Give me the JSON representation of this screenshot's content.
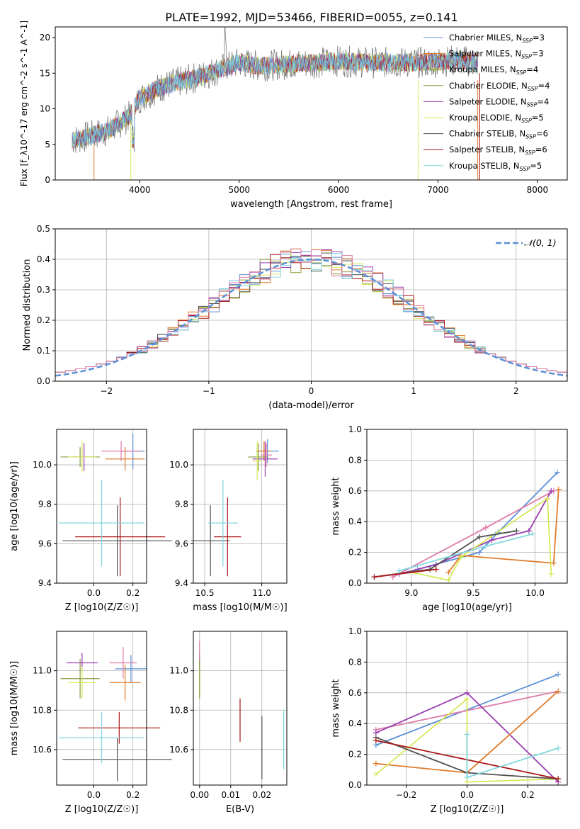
{
  "figure_title": "PLATE=1992, MJD=53466, FIBERID=0055, z=0.141",
  "colors": {
    "blue": "#5b8fd6",
    "orange": "#e07b2a",
    "olive": "#8a9a3a",
    "purple": "#9a3fb0",
    "yellow": "#d8e85a",
    "dark": "#505050",
    "red": "#aa1515",
    "cyan": "#7fd8de",
    "gray": "#7f7f7f",
    "pink": "#e07aa8",
    "normal": "#5b8fd6"
  },
  "chart_data": [
    {
      "id": "spectrum",
      "type": "line",
      "xlabel": "wavelength [Angstrom, rest frame]",
      "ylabel": "Flux [f_λ10^-17 erg cm^-2 s^-1 A^-1]",
      "xlim": [
        3150,
        8300
      ],
      "ylim": [
        0,
        21.5
      ],
      "xticks": [
        4000,
        5000,
        6000,
        7000,
        8000
      ],
      "yticks": [
        0,
        5,
        10,
        15,
        20
      ],
      "legend_position": "right",
      "series": [
        {
          "name": "Chabrier MILES",
          "nssp": "3",
          "color": "blue"
        },
        {
          "name": "Salpeter MILES",
          "nssp": "3",
          "color": "orange"
        },
        {
          "name": "Kroupa MILES",
          "nssp": "4",
          "color": "olive"
        },
        {
          "name": "Chabrier ELODIE",
          "nssp": "4",
          "color": "olive"
        },
        {
          "name": "Salpeter ELODIE",
          "nssp": "4",
          "color": "purple"
        },
        {
          "name": "Kroupa ELODIE",
          "nssp": "5",
          "color": "yellow"
        },
        {
          "name": "Chabrier STELIB",
          "nssp": "6",
          "color": "dark"
        },
        {
          "name": "Salpeter STELIB",
          "nssp": "6",
          "color": "red"
        },
        {
          "name": "Kroupa STELIB",
          "nssp": "5",
          "color": "cyan"
        }
      ],
      "continuum": {
        "x": [
          3300,
          3500,
          3700,
          3900,
          4000,
          4200,
          4400,
          4600,
          4800,
          5000,
          5200,
          5500,
          5800,
          6000,
          6300,
          6600,
          6900,
          7200,
          7400
        ],
        "y": [
          5.5,
          6.2,
          7.0,
          9.0,
          11.5,
          13.0,
          13.8,
          14.5,
          15.5,
          16.5,
          16.0,
          16.3,
          16.5,
          16.7,
          16.5,
          16.5,
          16.5,
          16.8,
          16.5
        ]
      }
    },
    {
      "id": "residuals",
      "type": "line",
      "xlabel": "(data-model)/error",
      "ylabel": "Normed distribution",
      "xlim": [
        -2.5,
        2.5
      ],
      "ylim": [
        0,
        0.5
      ],
      "xticks": [
        -2,
        -1,
        0,
        1,
        2
      ],
      "xticklabels": [
        "−2",
        "−1",
        "0",
        "1",
        "2"
      ],
      "yticks": [
        0,
        0.1,
        0.2,
        0.3,
        0.4,
        0.5
      ],
      "yticklabels": [
        "0.0",
        "0.1",
        "0.2",
        "0.3",
        "0.4",
        "0.5"
      ],
      "grid": true,
      "legend_position": "top-right",
      "normal_label": "𝒩(0, 1)"
    },
    {
      "id": "age_vs_Z",
      "type": "scatter",
      "xlabel": "Z [log10(Z/Z☉)]",
      "ylabel": "age [log10(age/yr)]",
      "xlim": [
        -0.19,
        0.27
      ],
      "ylim": [
        9.4,
        10.18
      ],
      "xticks": [
        0.0,
        0.2
      ],
      "xticklabels": [
        "0.0",
        "0.2"
      ],
      "yticks": [
        9.4,
        9.6,
        9.8,
        10.0
      ],
      "yticklabels": [
        "9.4",
        "9.6",
        "9.8",
        "10.0"
      ],
      "grid": true,
      "points": [
        {
          "color": "blue",
          "x": 0.2,
          "y": 10.07,
          "xerr": 0.06,
          "yerr": 0.09
        },
        {
          "color": "orange",
          "x": 0.16,
          "y": 10.03,
          "xerr": 0.1,
          "yerr": 0.06
        },
        {
          "color": "olive",
          "x": -0.07,
          "y": 10.04,
          "xerr": 0.1,
          "yerr": 0.05
        },
        {
          "color": "purple",
          "x": -0.05,
          "y": 10.04,
          "xerr": 0.06,
          "yerr": 0.07
        },
        {
          "color": "yellow",
          "x": -0.06,
          "y": 10.04,
          "xerr": 0.07,
          "yerr": 0.08
        },
        {
          "color": "pink",
          "x": 0.14,
          "y": 10.07,
          "xerr": 0.1,
          "yerr": 0.05
        },
        {
          "color": "dark",
          "x": 0.12,
          "y": 9.615,
          "xerr": 0.28,
          "yerr": 0.18
        },
        {
          "color": "red",
          "x": 0.135,
          "y": 9.635,
          "xerr": 0.23,
          "yerr": 0.2
        },
        {
          "color": "cyan",
          "x": 0.04,
          "y": 9.705,
          "xerr": 0.22,
          "yerr": 0.22
        }
      ]
    },
    {
      "id": "age_vs_mass",
      "type": "scatter",
      "xlabel": "mass [log10(M/M☉)]",
      "ylabel": "",
      "xlim": [
        10.4,
        11.22
      ],
      "ylim": [
        9.4,
        10.18
      ],
      "xticks": [
        10.5,
        11.0
      ],
      "xticklabels": [
        "10.5",
        "11.0"
      ],
      "yticks": [
        9.4,
        9.6,
        9.8,
        10.0
      ],
      "yticklabels": [
        "9.4",
        "9.6",
        "9.8",
        "10.0"
      ],
      "grid": true,
      "points": [
        {
          "color": "blue",
          "x": 11.05,
          "y": 10.07,
          "xerr": 0.1,
          "yerr": 0.06
        },
        {
          "color": "orange",
          "x": 11.02,
          "y": 10.07,
          "xerr": 0.06,
          "yerr": 0.05
        },
        {
          "color": "olive",
          "x": 10.97,
          "y": 10.04,
          "xerr": 0.09,
          "yerr": 0.07
        },
        {
          "color": "purple",
          "x": 11.03,
          "y": 10.03,
          "xerr": 0.11,
          "yerr": 0.09
        },
        {
          "color": "yellow",
          "x": 10.96,
          "y": 10.02,
          "xerr": 0.04,
          "yerr": 0.1
        },
        {
          "color": "pink",
          "x": 11.04,
          "y": 10.05,
          "xerr": 0.05,
          "yerr": 0.06
        },
        {
          "color": "dark",
          "x": 10.55,
          "y": 9.615,
          "xerr": 0.17,
          "yerr": 0.18
        },
        {
          "color": "red",
          "x": 10.7,
          "y": 9.635,
          "xerr": 0.12,
          "yerr": 0.2
        },
        {
          "color": "cyan",
          "x": 10.66,
          "y": 9.705,
          "xerr": 0.13,
          "yerr": 0.22
        }
      ]
    },
    {
      "id": "weight_vs_age",
      "type": "line",
      "xlabel": "age [log10(age/yr)]",
      "ylabel": "mass weight",
      "xlim": [
        8.64,
        10.26
      ],
      "ylim": [
        0,
        1
      ],
      "xticks": [
        9.0,
        9.5,
        10.0
      ],
      "xticklabels": [
        "9.0",
        "9.5",
        "10.0"
      ],
      "yticks": [
        0,
        0.2,
        0.4,
        0.6,
        0.8,
        1.0
      ],
      "yticklabels": [
        "0.0",
        "0.2",
        "0.4",
        "0.6",
        "0.8",
        "1.0"
      ],
      "grid": true,
      "series": [
        {
          "color": "blue",
          "x": [
            9.05,
            9.55,
            9.7,
            10.18
          ],
          "y": [
            0.09,
            0.2,
            0.33,
            0.72
          ]
        },
        {
          "color": "orange",
          "x": [
            9.3,
            9.4,
            10.15,
            10.19
          ],
          "y": [
            0.07,
            0.18,
            0.13,
            0.61
          ]
        },
        {
          "color": "pink",
          "x": [
            8.85,
            9.6,
            10.15
          ],
          "y": [
            0.04,
            0.36,
            0.6
          ]
        },
        {
          "color": "purple",
          "x": [
            8.9,
            9.2,
            9.65,
            9.95,
            10.13
          ],
          "y": [
            0.06,
            0.12,
            0.28,
            0.34,
            0.6
          ]
        },
        {
          "color": "yellow",
          "x": [
            9.0,
            9.3,
            9.4,
            10.1,
            10.13
          ],
          "y": [
            0.07,
            0.02,
            0.17,
            0.55,
            0.06
          ]
        },
        {
          "color": "dark",
          "x": [
            8.7,
            9.15,
            9.55,
            9.85
          ],
          "y": [
            0.04,
            0.09,
            0.3,
            0.34
          ]
        },
        {
          "color": "red",
          "x": [
            8.7,
            9.2
          ],
          "y": [
            0.04,
            0.09
          ]
        },
        {
          "color": "cyan",
          "x": [
            8.9,
            9.6,
            9.98
          ],
          "y": [
            0.08,
            0.24,
            0.32
          ]
        }
      ]
    },
    {
      "id": "mass_vs_Z",
      "type": "scatter",
      "xlabel": "Z [log10(Z/Z☉)]",
      "ylabel": "mass [log10(M/M☉)]",
      "xlim": [
        -0.19,
        0.27
      ],
      "ylim": [
        10.42,
        11.2
      ],
      "xticks": [
        0.0,
        0.2
      ],
      "xticklabels": [
        "0.0",
        "0.2"
      ],
      "yticks": [
        10.6,
        10.8,
        11.0
      ],
      "yticklabels": [
        "10.6",
        "10.8",
        "11.0"
      ],
      "grid": true,
      "points": [
        {
          "color": "blue",
          "x": 0.19,
          "y": 11.01,
          "xerr": 0.08,
          "yerr": 0.07
        },
        {
          "color": "orange",
          "x": 0.16,
          "y": 10.94,
          "xerr": 0.08,
          "yerr": 0.09
        },
        {
          "color": "olive",
          "x": -0.07,
          "y": 10.96,
          "xerr": 0.1,
          "yerr": 0.1
        },
        {
          "color": "purple",
          "x": -0.06,
          "y": 11.04,
          "xerr": 0.08,
          "yerr": 0.05
        },
        {
          "color": "yellow",
          "x": -0.06,
          "y": 10.94,
          "xerr": 0.07,
          "yerr": 0.08
        },
        {
          "color": "pink",
          "x": 0.15,
          "y": 11.04,
          "xerr": 0.07,
          "yerr": 0.08
        },
        {
          "color": "dark",
          "x": 0.12,
          "y": 10.55,
          "xerr": 0.28,
          "yerr": 0.11
        },
        {
          "color": "red",
          "x": 0.13,
          "y": 10.71,
          "xerr": 0.21,
          "yerr": 0.08
        },
        {
          "color": "cyan",
          "x": 0.04,
          "y": 10.66,
          "xerr": 0.22,
          "yerr": 0.13
        }
      ]
    },
    {
      "id": "mass_vs_ebv",
      "type": "scatter",
      "xlabel": "E(B-V)",
      "ylabel": "",
      "xlim": [
        -0.002,
        0.028
      ],
      "ylim": [
        10.42,
        11.2
      ],
      "xticks": [
        0.0,
        0.01,
        0.02
      ],
      "xticklabels": [
        "0.00",
        "0.01",
        "0.02"
      ],
      "yticks": [
        10.6,
        10.8,
        11.0
      ],
      "yticklabels": [
        "10.6",
        "10.8",
        "11.0"
      ],
      "grid": true,
      "points": [
        {
          "color": "purple",
          "x": 0.0,
          "y": 11.04,
          "xerr": 0,
          "yerr": 0.05
        },
        {
          "color": "pink",
          "x": 0.0,
          "y": 11.05,
          "xerr": 0,
          "yerr": 0.1
        },
        {
          "color": "yellow",
          "x": 0.0,
          "y": 10.94,
          "xerr": 0,
          "yerr": 0.08
        },
        {
          "color": "olive",
          "x": 0.0,
          "y": 10.96,
          "xerr": 0,
          "yerr": 0.1
        },
        {
          "color": "red",
          "x": 0.013,
          "y": 10.75,
          "xerr": 0,
          "yerr": 0.11
        },
        {
          "color": "dark",
          "x": 0.02,
          "y": 10.61,
          "xerr": 0,
          "yerr": 0.16
        },
        {
          "color": "cyan",
          "x": 0.027,
          "y": 10.65,
          "xerr": 0,
          "yerr": 0.15
        }
      ]
    },
    {
      "id": "weight_vs_Z",
      "type": "line",
      "xlabel": "Z [log10(Z/Z☉)]",
      "ylabel": "mass weight",
      "xlim": [
        -0.33,
        0.33
      ],
      "ylim": [
        0,
        1
      ],
      "xticks": [
        -0.2,
        0.0,
        0.2
      ],
      "xticklabels": [
        "−0.2",
        "0.0",
        "0.2"
      ],
      "yticks": [
        0,
        0.2,
        0.4,
        0.6,
        0.8,
        1.0
      ],
      "yticklabels": [
        "0.0",
        "0.2",
        "0.4",
        "0.6",
        "0.8",
        "1.0"
      ],
      "grid": true,
      "series": [
        {
          "color": "blue",
          "x": [
            -0.3,
            0.3
          ],
          "y": [
            0.26,
            0.72
          ]
        },
        {
          "color": "pink",
          "x": [
            -0.3,
            0.3
          ],
          "y": [
            0.36,
            0.61
          ]
        },
        {
          "color": "purple",
          "x": [
            -0.3,
            0.0,
            0.3
          ],
          "y": [
            0.34,
            0.6,
            0.02
          ]
        },
        {
          "color": "orange",
          "x": [
            -0.3,
            0.0,
            0.3
          ],
          "y": [
            0.14,
            0.08,
            0.61
          ]
        },
        {
          "color": "yellow",
          "x": [
            -0.3,
            0.0,
            0.0,
            0.3
          ],
          "y": [
            0.07,
            0.56,
            0.02,
            0.04
          ]
        },
        {
          "color": "dark",
          "x": [
            -0.3,
            0.0,
            0.3
          ],
          "y": [
            0.31,
            0.08,
            0.04
          ]
        },
        {
          "color": "red",
          "x": [
            -0.3,
            0.3
          ],
          "y": [
            0.29,
            0.04
          ]
        },
        {
          "color": "cyan",
          "x": [
            0.0,
            0.0,
            0.3
          ],
          "y": [
            0.33,
            0.05,
            0.24
          ]
        }
      ]
    }
  ]
}
